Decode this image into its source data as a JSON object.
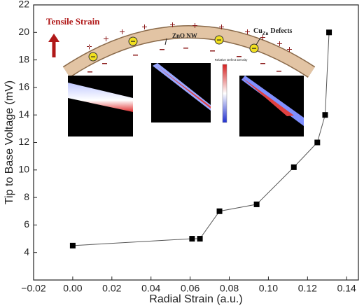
{
  "chart_data": {
    "type": "line",
    "x_label": "Radial Strain (a.u.)",
    "y_label": "Tip to Base Voltage (mV)",
    "x": [
      0.0,
      0.061,
      0.065,
      0.075,
      0.094,
      0.113,
      0.125,
      0.129,
      0.131
    ],
    "values": [
      4.5,
      5.0,
      5.0,
      7.0,
      7.5,
      10.2,
      12.0,
      14.0,
      20.0
    ],
    "color": "#000000",
    "line_color": "#555555",
    "xlim": [
      -0.02,
      0.146
    ],
    "ylim": [
      2,
      22
    ],
    "xticks": [
      {
        "value": -0.02,
        "label": "−0.02"
      },
      {
        "value": 0,
        "label": "0.00"
      },
      {
        "value": 0.02,
        "label": "0.02"
      },
      {
        "value": 0.04,
        "label": "0.04"
      },
      {
        "value": 0.06,
        "label": "0.06"
      },
      {
        "value": 0.08,
        "label": "0.08"
      },
      {
        "value": 0.1,
        "label": "0.10"
      },
      {
        "value": 0.12,
        "label": "0.12"
      },
      {
        "value": 0.14,
        "label": "0.14"
      }
    ],
    "yticks": [
      4,
      6,
      8,
      10,
      12,
      14,
      16,
      18,
      20,
      22
    ],
    "grid": false,
    "annotations": [
      "Tensile Strain",
      "ZnO NW",
      "Cu",
      "Zn",
      "Defects",
      "Relative Defect Density"
    ]
  }
}
